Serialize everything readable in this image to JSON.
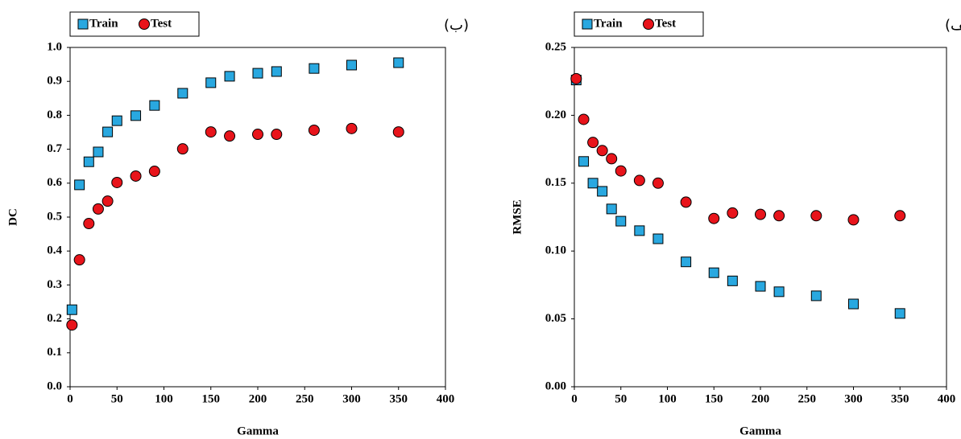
{
  "chart_data": [
    {
      "type": "scatter",
      "label": "(ب)",
      "x_label": "Gamma",
      "y_label": "DC",
      "xlim": [
        0,
        400
      ],
      "xticks": [
        0,
        50,
        100,
        150,
        200,
        250,
        300,
        350,
        400
      ],
      "ylim": [
        0,
        1
      ],
      "yticks": [
        {
          "value": 0,
          "label": "0.0"
        },
        0.1,
        0.2,
        0.3,
        0.4,
        0.5,
        0.6,
        0.7,
        0.8,
        0.9,
        {
          "value": 1,
          "label": "1.0"
        }
      ],
      "grid": false,
      "legend": "top-left",
      "x": [
        2,
        10,
        20,
        30,
        40,
        50,
        70,
        90,
        120,
        150,
        170,
        200,
        220,
        260,
        300,
        350
      ],
      "series": [
        {
          "name": "Train",
          "color": "#29a8e0",
          "marker": "square",
          "values": [
            0.227,
            0.595,
            0.663,
            0.692,
            0.751,
            0.784,
            0.799,
            0.829,
            0.865,
            0.896,
            0.915,
            0.924,
            0.929,
            0.938,
            0.948,
            0.955
          ]
        },
        {
          "name": "Test",
          "color": "#e8141b",
          "marker": "circle",
          "values": [
            0.182,
            0.374,
            0.481,
            0.524,
            0.547,
            0.602,
            0.621,
            0.635,
            0.701,
            0.751,
            0.739,
            0.744,
            0.744,
            0.756,
            0.761,
            0.751
          ]
        }
      ]
    },
    {
      "type": "scatter",
      "label": "(الف)",
      "x_label": "Gamma",
      "y_label": "RMSE",
      "xlim": [
        0,
        400
      ],
      "xticks": [
        0,
        50,
        100,
        150,
        200,
        250,
        300,
        350,
        400
      ],
      "ylim": [
        0,
        0.25
      ],
      "yticks": [
        {
          "value": 0,
          "label": "0.00"
        },
        0.05,
        {
          "value": 0.1,
          "label": "0.10"
        },
        0.15,
        {
          "value": 0.2,
          "label": "0.20"
        },
        0.25
      ],
      "grid": false,
      "legend": "top-left",
      "x": [
        2,
        10,
        20,
        30,
        40,
        50,
        70,
        90,
        120,
        150,
        170,
        200,
        220,
        260,
        300,
        350
      ],
      "series": [
        {
          "name": "Train",
          "color": "#29a8e0",
          "marker": "square",
          "values": [
            0.226,
            0.166,
            0.15,
            0.144,
            0.131,
            0.122,
            0.115,
            0.109,
            0.092,
            0.084,
            0.078,
            0.074,
            0.07,
            0.067,
            0.061,
            0.054
          ]
        },
        {
          "name": "Test",
          "color": "#e8141b",
          "marker": "circle",
          "values": [
            0.227,
            0.197,
            0.18,
            0.174,
            0.168,
            0.159,
            0.152,
            0.15,
            0.136,
            0.124,
            0.128,
            0.127,
            0.126,
            0.126,
            0.123,
            0.126
          ]
        }
      ]
    }
  ]
}
